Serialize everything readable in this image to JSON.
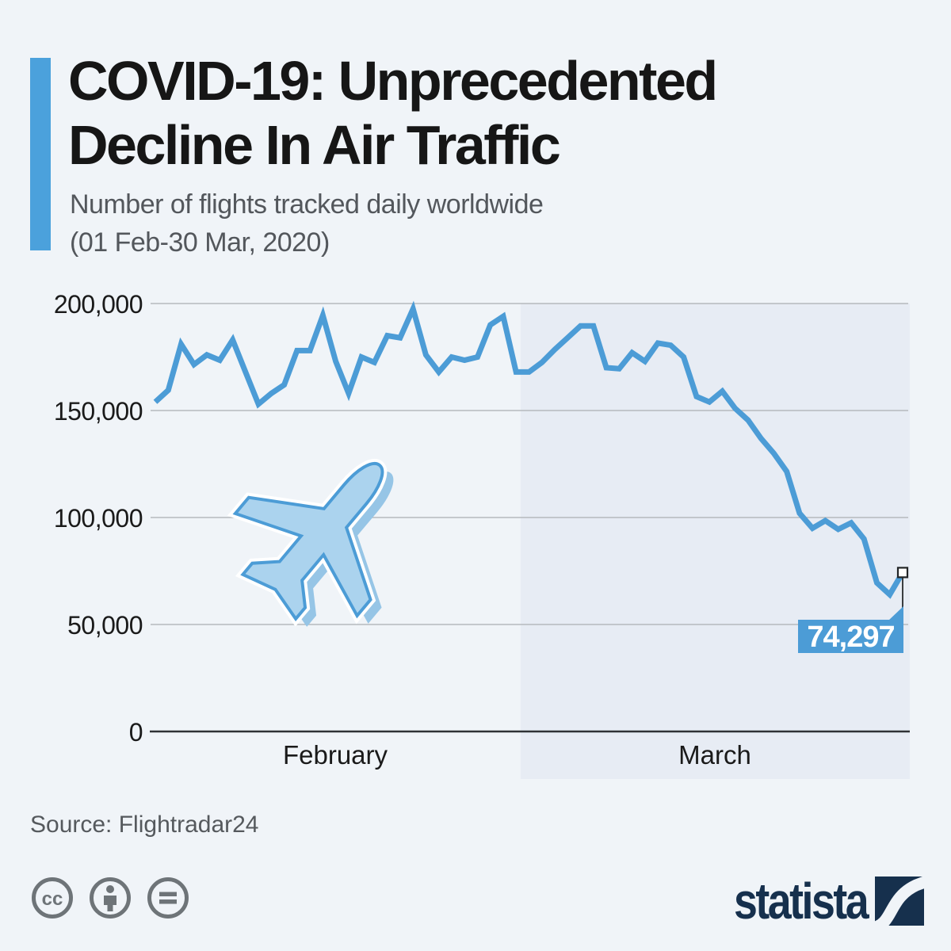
{
  "header": {
    "title_line1": "COVID-19: Unprecedented",
    "title_line2": "Decline In Air Traffic",
    "subtitle_line1": "Number of flights tracked daily worldwide",
    "subtitle_line2": "(01 Feb-30 Mar, 2020)"
  },
  "chart_data": {
    "type": "line",
    "title": "COVID-19: Unprecedented Decline In Air Traffic",
    "subtitle": "Number of flights tracked daily worldwide (01 Feb-30 Mar, 2020)",
    "xlabel": "",
    "ylabel": "Number of flights tracked daily",
    "ylim": [
      0,
      200000
    ],
    "grid": true,
    "legend": "none",
    "line_color": "#4c9cd6",
    "highlight_region": {
      "label": "March",
      "color": "#e7ecf4"
    },
    "y_ticks": [
      "200,000",
      "150,000",
      "100,000",
      "50,000",
      "0"
    ],
    "x_axis_labels": [
      "February",
      "March"
    ],
    "x": [
      "Feb 1",
      "Feb 2",
      "Feb 3",
      "Feb 4",
      "Feb 5",
      "Feb 6",
      "Feb 7",
      "Feb 8",
      "Feb 9",
      "Feb 10",
      "Feb 11",
      "Feb 12",
      "Feb 13",
      "Feb 14",
      "Feb 15",
      "Feb 16",
      "Feb 17",
      "Feb 18",
      "Feb 19",
      "Feb 20",
      "Feb 21",
      "Feb 22",
      "Feb 23",
      "Feb 24",
      "Feb 25",
      "Feb 26",
      "Feb 27",
      "Feb 28",
      "Feb 29",
      "Mar 1",
      "Mar 2",
      "Mar 3",
      "Mar 4",
      "Mar 5",
      "Mar 6",
      "Mar 7",
      "Mar 8",
      "Mar 9",
      "Mar 10",
      "Mar 11",
      "Mar 12",
      "Mar 13",
      "Mar 14",
      "Mar 15",
      "Mar 16",
      "Mar 17",
      "Mar 18",
      "Mar 19",
      "Mar 20",
      "Mar 21",
      "Mar 22",
      "Mar 23",
      "Mar 24",
      "Mar 25",
      "Mar 26",
      "Mar 27",
      "Mar 28",
      "Mar 29",
      "Mar 30"
    ],
    "values": [
      154000,
      159500,
      181000,
      171500,
      176000,
      173500,
      183000,
      168000,
      153000,
      158000,
      162000,
      178000,
      178000,
      194500,
      173000,
      158000,
      175000,
      172500,
      185000,
      184000,
      197500,
      176000,
      168000,
      175000,
      173500,
      175000,
      190000,
      194000,
      168000,
      168000,
      172500,
      178500,
      184000,
      189500,
      189500,
      170000,
      169500,
      177000,
      173000,
      181500,
      180500,
      175000,
      156500,
      154000,
      159000,
      151000,
      145500,
      137000,
      130000,
      121500,
      102000,
      95000,
      98500,
      94500,
      97500,
      90000,
      69500,
      64000,
      74297
    ],
    "annotation": {
      "label": "74,297",
      "value": 74297,
      "x": "Mar 30"
    }
  },
  "footer": {
    "source": "Source: Flightradar24",
    "license_icons": [
      "cc",
      "by",
      "nd"
    ],
    "logo_text": "statista"
  },
  "colors": {
    "background": "#f0f4f8",
    "accent_bar": "#4ba1dc",
    "line": "#4c9cd6",
    "march_shade": "#e7ecf4",
    "navy": "#16304d"
  }
}
